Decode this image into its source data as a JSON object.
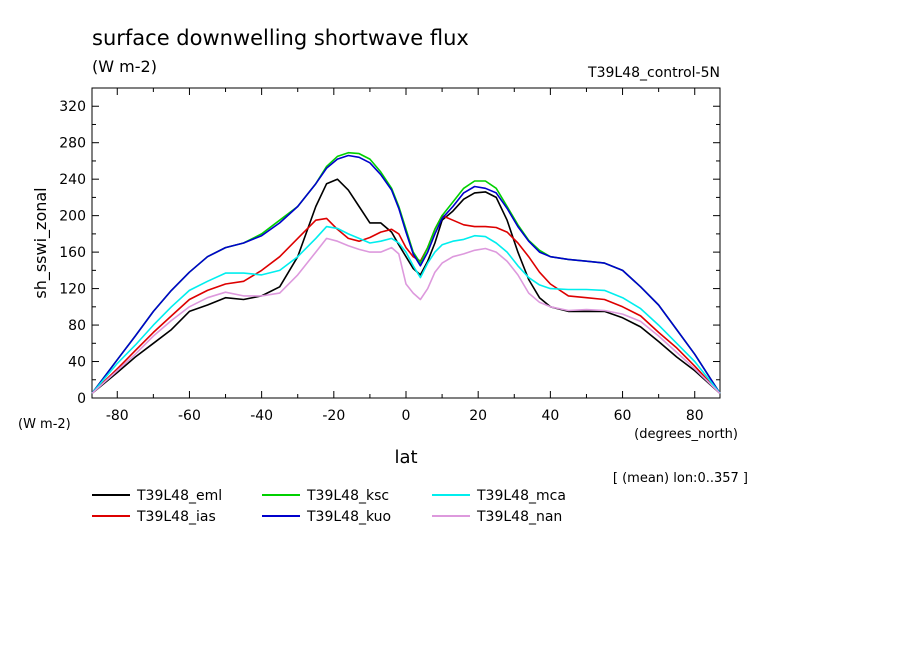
{
  "chart_data": {
    "type": "line",
    "title": "surface downwelling shortwave flux",
    "units": "(W m-2)",
    "run_label": "T39L48_control-5N",
    "ylabel": "sh_sswi_zonal",
    "y_units": "(W m-2)",
    "xlabel": "lat",
    "x_units": "(degrees_north)",
    "note": "[ (mean) lon:0..357 ]",
    "xlim": [
      -87,
      87
    ],
    "ylim": [
      0,
      340
    ],
    "xticks": [
      -80,
      -60,
      -40,
      -20,
      0,
      20,
      40,
      60,
      80
    ],
    "yticks": [
      0,
      40,
      80,
      120,
      160,
      200,
      240,
      280,
      320
    ],
    "grid": false,
    "legend_position": "bottom",
    "series": [
      {
        "name": "T39L48_eml",
        "color": "#000000",
        "x": [
          -87,
          -80,
          -75,
          -70,
          -65,
          -60,
          -55,
          -50,
          -45,
          -40,
          -35,
          -30,
          -25,
          -22,
          -19,
          -16,
          -13,
          -10,
          -7,
          -4,
          -2,
          0,
          2,
          4,
          6,
          8,
          10,
          13,
          16,
          19,
          22,
          25,
          28,
          31,
          34,
          37,
          40,
          45,
          50,
          55,
          60,
          65,
          70,
          75,
          80,
          87
        ],
        "y": [
          5,
          28,
          45,
          60,
          75,
          95,
          102,
          110,
          108,
          112,
          122,
          155,
          210,
          235,
          240,
          228,
          210,
          192,
          192,
          182,
          168,
          155,
          142,
          135,
          150,
          170,
          195,
          205,
          218,
          225,
          226,
          220,
          195,
          160,
          130,
          110,
          100,
          95,
          95,
          95,
          88,
          78,
          62,
          45,
          30,
          5
        ]
      },
      {
        "name": "T39L48_ias",
        "color": "#dd0000",
        "x": [
          -87,
          -80,
          -75,
          -70,
          -65,
          -60,
          -55,
          -50,
          -45,
          -40,
          -35,
          -30,
          -25,
          -22,
          -19,
          -16,
          -13,
          -10,
          -7,
          -4,
          -2,
          0,
          2,
          4,
          6,
          8,
          10,
          13,
          16,
          19,
          22,
          25,
          28,
          31,
          34,
          37,
          40,
          45,
          50,
          55,
          60,
          65,
          70,
          75,
          80,
          87
        ],
        "y": [
          5,
          32,
          52,
          72,
          90,
          108,
          118,
          125,
          128,
          140,
          155,
          175,
          195,
          197,
          185,
          175,
          172,
          176,
          182,
          185,
          180,
          165,
          155,
          150,
          165,
          185,
          200,
          195,
          190,
          188,
          188,
          187,
          182,
          170,
          155,
          138,
          125,
          112,
          110,
          108,
          100,
          90,
          72,
          55,
          35,
          5
        ]
      },
      {
        "name": "T39L48_ksc",
        "color": "#00d000",
        "x": [
          -87,
          -80,
          -75,
          -70,
          -65,
          -60,
          -55,
          -50,
          -45,
          -40,
          -35,
          -30,
          -25,
          -22,
          -19,
          -16,
          -13,
          -10,
          -7,
          -4,
          -2,
          0,
          2,
          4,
          6,
          8,
          10,
          13,
          16,
          19,
          22,
          25,
          28,
          31,
          34,
          37,
          40,
          45,
          50,
          55,
          60,
          65,
          70,
          75,
          80,
          87
        ],
        "y": [
          5,
          42,
          68,
          95,
          118,
          138,
          155,
          165,
          170,
          180,
          195,
          210,
          235,
          254,
          265,
          269,
          268,
          262,
          248,
          230,
          210,
          185,
          160,
          148,
          165,
          185,
          200,
          215,
          230,
          238,
          238,
          230,
          210,
          190,
          173,
          162,
          155,
          152,
          150,
          148,
          140,
          122,
          102,
          75,
          48,
          5
        ]
      },
      {
        "name": "T39L48_kuo",
        "color": "#0000cc",
        "x": [
          -87,
          -80,
          -75,
          -70,
          -65,
          -60,
          -55,
          -50,
          -45,
          -40,
          -35,
          -30,
          -25,
          -22,
          -19,
          -16,
          -13,
          -10,
          -7,
          -4,
          -2,
          0,
          2,
          4,
          6,
          8,
          10,
          13,
          16,
          19,
          22,
          25,
          28,
          31,
          34,
          37,
          40,
          45,
          50,
          55,
          60,
          65,
          70,
          75,
          80,
          87
        ],
        "y": [
          5,
          42,
          68,
          95,
          118,
          138,
          155,
          165,
          170,
          178,
          192,
          210,
          235,
          252,
          262,
          266,
          264,
          258,
          245,
          228,
          208,
          182,
          158,
          145,
          160,
          180,
          197,
          210,
          225,
          232,
          230,
          225,
          208,
          188,
          172,
          160,
          155,
          152,
          150,
          148,
          140,
          122,
          102,
          75,
          48,
          5
        ]
      },
      {
        "name": "T39L48_mca",
        "color": "#00eeee",
        "x": [
          -87,
          -80,
          -75,
          -70,
          -65,
          -60,
          -55,
          -50,
          -45,
          -40,
          -35,
          -30,
          -25,
          -22,
          -19,
          -16,
          -13,
          -10,
          -7,
          -4,
          -2,
          0,
          2,
          4,
          6,
          8,
          10,
          13,
          16,
          19,
          22,
          25,
          28,
          31,
          34,
          37,
          40,
          45,
          50,
          55,
          60,
          65,
          70,
          75,
          80,
          87
        ],
        "y": [
          5,
          38,
          58,
          80,
          100,
          118,
          128,
          137,
          137,
          135,
          140,
          155,
          175,
          188,
          186,
          180,
          175,
          170,
          172,
          175,
          170,
          160,
          145,
          132,
          148,
          160,
          168,
          172,
          174,
          178,
          177,
          170,
          160,
          145,
          132,
          124,
          120,
          119,
          119,
          118,
          110,
          98,
          80,
          60,
          40,
          5
        ]
      },
      {
        "name": "T39L48_nan",
        "color": "#dd99dd",
        "x": [
          -87,
          -80,
          -75,
          -70,
          -65,
          -60,
          -55,
          -50,
          -45,
          -40,
          -35,
          -30,
          -25,
          -22,
          -19,
          -16,
          -13,
          -10,
          -7,
          -4,
          -2,
          0,
          2,
          4,
          6,
          8,
          10,
          13,
          16,
          19,
          22,
          25,
          28,
          31,
          34,
          37,
          40,
          45,
          50,
          55,
          60,
          65,
          70,
          75,
          80,
          87
        ],
        "y": [
          5,
          30,
          48,
          68,
          85,
          100,
          110,
          116,
          112,
          112,
          115,
          135,
          160,
          175,
          172,
          167,
          163,
          160,
          160,
          165,
          158,
          125,
          115,
          108,
          120,
          138,
          148,
          155,
          158,
          162,
          164,
          160,
          150,
          135,
          115,
          105,
          100,
          96,
          97,
          96,
          92,
          84,
          68,
          50,
          32,
          5
        ]
      }
    ]
  }
}
